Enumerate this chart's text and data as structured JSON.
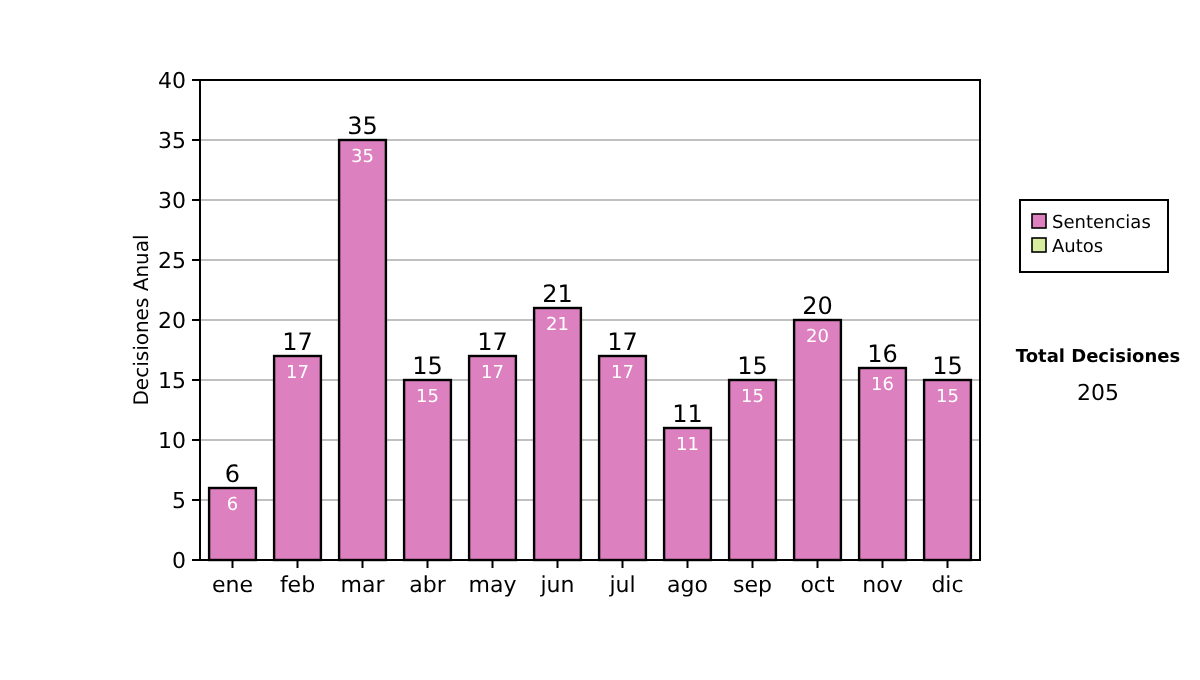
{
  "chart_data": {
    "type": "bar",
    "ylabel": "Decisiones Anual",
    "categories": [
      "ene",
      "feb",
      "mar",
      "abr",
      "may",
      "jun",
      "jul",
      "ago",
      "sep",
      "oct",
      "nov",
      "dic"
    ],
    "stacked": true,
    "series": [
      {
        "name": "Sentencias",
        "color": "#dd80c0",
        "values": [
          6,
          17,
          35,
          15,
          17,
          21,
          17,
          11,
          15,
          20,
          16,
          15
        ],
        "value_labels": [
          "6",
          "17",
          "35",
          "15",
          "17",
          "21",
          "17",
          "11",
          "15",
          "20",
          "16",
          "15"
        ]
      },
      {
        "name": "Autos",
        "color": "#d8eca0",
        "values": [
          0,
          0,
          0,
          0,
          0,
          0,
          0,
          0,
          0,
          0,
          0,
          0
        ],
        "value_labels": [
          null,
          null,
          null,
          null,
          null,
          null,
          null,
          null,
          null,
          null,
          null,
          null
        ]
      }
    ],
    "totals": [
      "6",
      "17",
      "35",
      "15",
      "17",
      "21",
      "17",
      "11",
      "15",
      "20",
      "16",
      "15"
    ],
    "ylim": [
      0,
      40
    ],
    "yticks": [
      0,
      5,
      10,
      15,
      20,
      25,
      30,
      35,
      40
    ],
    "grid": "y",
    "legend": "right",
    "annotations": [
      "Total Decisiones",
      "205"
    ]
  }
}
